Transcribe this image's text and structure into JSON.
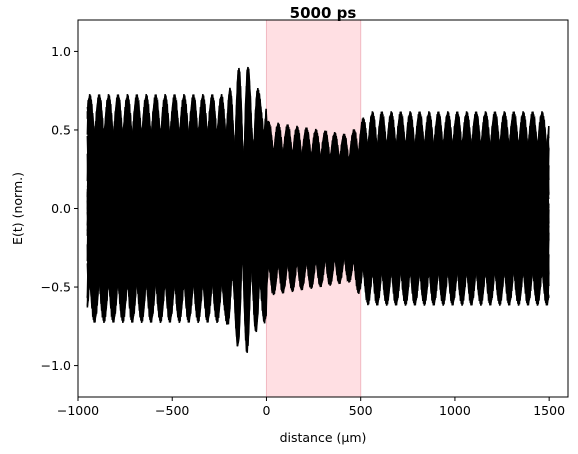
{
  "chart_data": {
    "type": "line",
    "title": "5000 ps",
    "xlabel": "distance (µm)",
    "ylabel": "E(t) (norm.)",
    "xlim": [
      -1000,
      1600
    ],
    "ylim": [
      -1.2,
      1.2
    ],
    "x_ticks": [
      -1000,
      -500,
      0,
      500,
      1000,
      1500
    ],
    "x_tick_labels": [
      "−1000",
      "−500",
      "0",
      "500",
      "1000",
      "1500"
    ],
    "y_ticks": [
      -1.0,
      -0.5,
      0.0,
      0.5,
      1.0
    ],
    "y_tick_labels": [
      "−1.0",
      "−0.5",
      "0.0",
      "0.5",
      "1.0"
    ],
    "shaded_region": {
      "x_start": 0,
      "x_end": 500,
      "color": "#ffdfe3",
      "edge_color": "#f2b8c2"
    },
    "line_color": "#000000",
    "grid": false,
    "series_summary": {
      "x_range": [
        -950,
        1500
      ],
      "left_region_amplitude": 0.73,
      "slab_region_amplitude": 0.56,
      "right_region_amplitude": 0.62,
      "pulse_peak_x": -120,
      "pulse_peak_y": 0.9,
      "number_of_time_snapshots": 26,
      "period_um": 50
    }
  }
}
